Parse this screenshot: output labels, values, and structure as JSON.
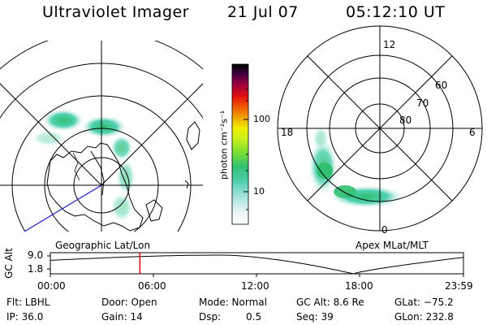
{
  "header": {
    "instrument": "Ultraviolet Imager",
    "date": "21 Jul 07",
    "time": "05:12:10 UT"
  },
  "maps": {
    "left_caption": "Geographic Lat/Lon",
    "right_caption": "Apex MLat/MLT",
    "right_labels": {
      "mlt_top": "12",
      "mlt_left": "18",
      "mlt_right": "6",
      "mlt_bottom": "0",
      "lat_60": "60",
      "lat_70": "70",
      "lat_80": "80"
    }
  },
  "colorbar": {
    "unit": "photon cm⁻²s⁻¹",
    "ticks": [
      "100",
      "10"
    ],
    "scale": "log",
    "colors": [
      "#e8f4f4",
      "#c8ecec",
      "#9ee0dc",
      "#4fd0b0",
      "#30c070",
      "#7ae030",
      "#c8f020",
      "#f0f000",
      "#f0a000",
      "#f05000",
      "#e01010",
      "#a00040",
      "#400040",
      "#000000"
    ]
  },
  "altitude_plot": {
    "ylabel": "GC Alt",
    "yticks": [
      "9.0",
      "1.8"
    ],
    "xticks": [
      "00:00",
      "06:00",
      "12:00",
      "18:00",
      "23:59"
    ],
    "marker_time_hours": 5.2,
    "marker_color": "#e00000"
  },
  "status": {
    "filter": "Flt: LBHL",
    "ip": "IP: 36.0",
    "door": "Door: Open",
    "gain": "Gain: 14",
    "mode": "Mode: Normal",
    "dsp_label": "Dsp:",
    "dsp_value": "0.5",
    "gc_alt": "GC Alt: 8.6 Re",
    "seq": "Seq: 39",
    "glat": "GLat: −75.2",
    "glon": "GLon: 232.8"
  }
}
